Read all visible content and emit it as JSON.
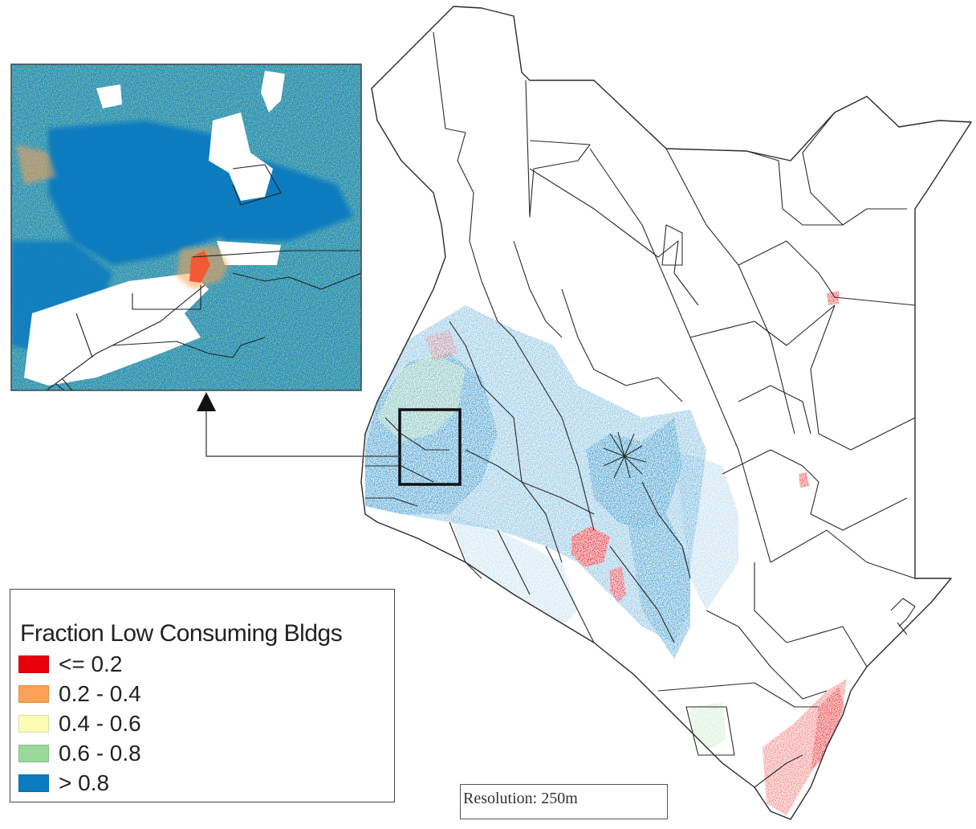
{
  "figure": {
    "subject": "Kenya",
    "inset_description": "Zoomed inset of western Kenya region"
  },
  "legend": {
    "title": "Fraction Low Consuming Bldgs",
    "items": [
      {
        "label": "<= 0.2",
        "color": "#e8000b"
      },
      {
        "label": "0.2 - 0.4",
        "color": "#fda254"
      },
      {
        "label": "0.4 - 0.6",
        "color": "#fdfcb4"
      },
      {
        "label": "0.6 - 0.8",
        "color": "#9ad99a"
      },
      {
        "label": "> 0.8",
        "color": "#0a7cbf"
      }
    ]
  },
  "resolution": {
    "label": "Resolution: 250m"
  },
  "colors": {
    "boundary": "#2a2a2a",
    "background": "#ffffff",
    "frame": "#111111"
  }
}
